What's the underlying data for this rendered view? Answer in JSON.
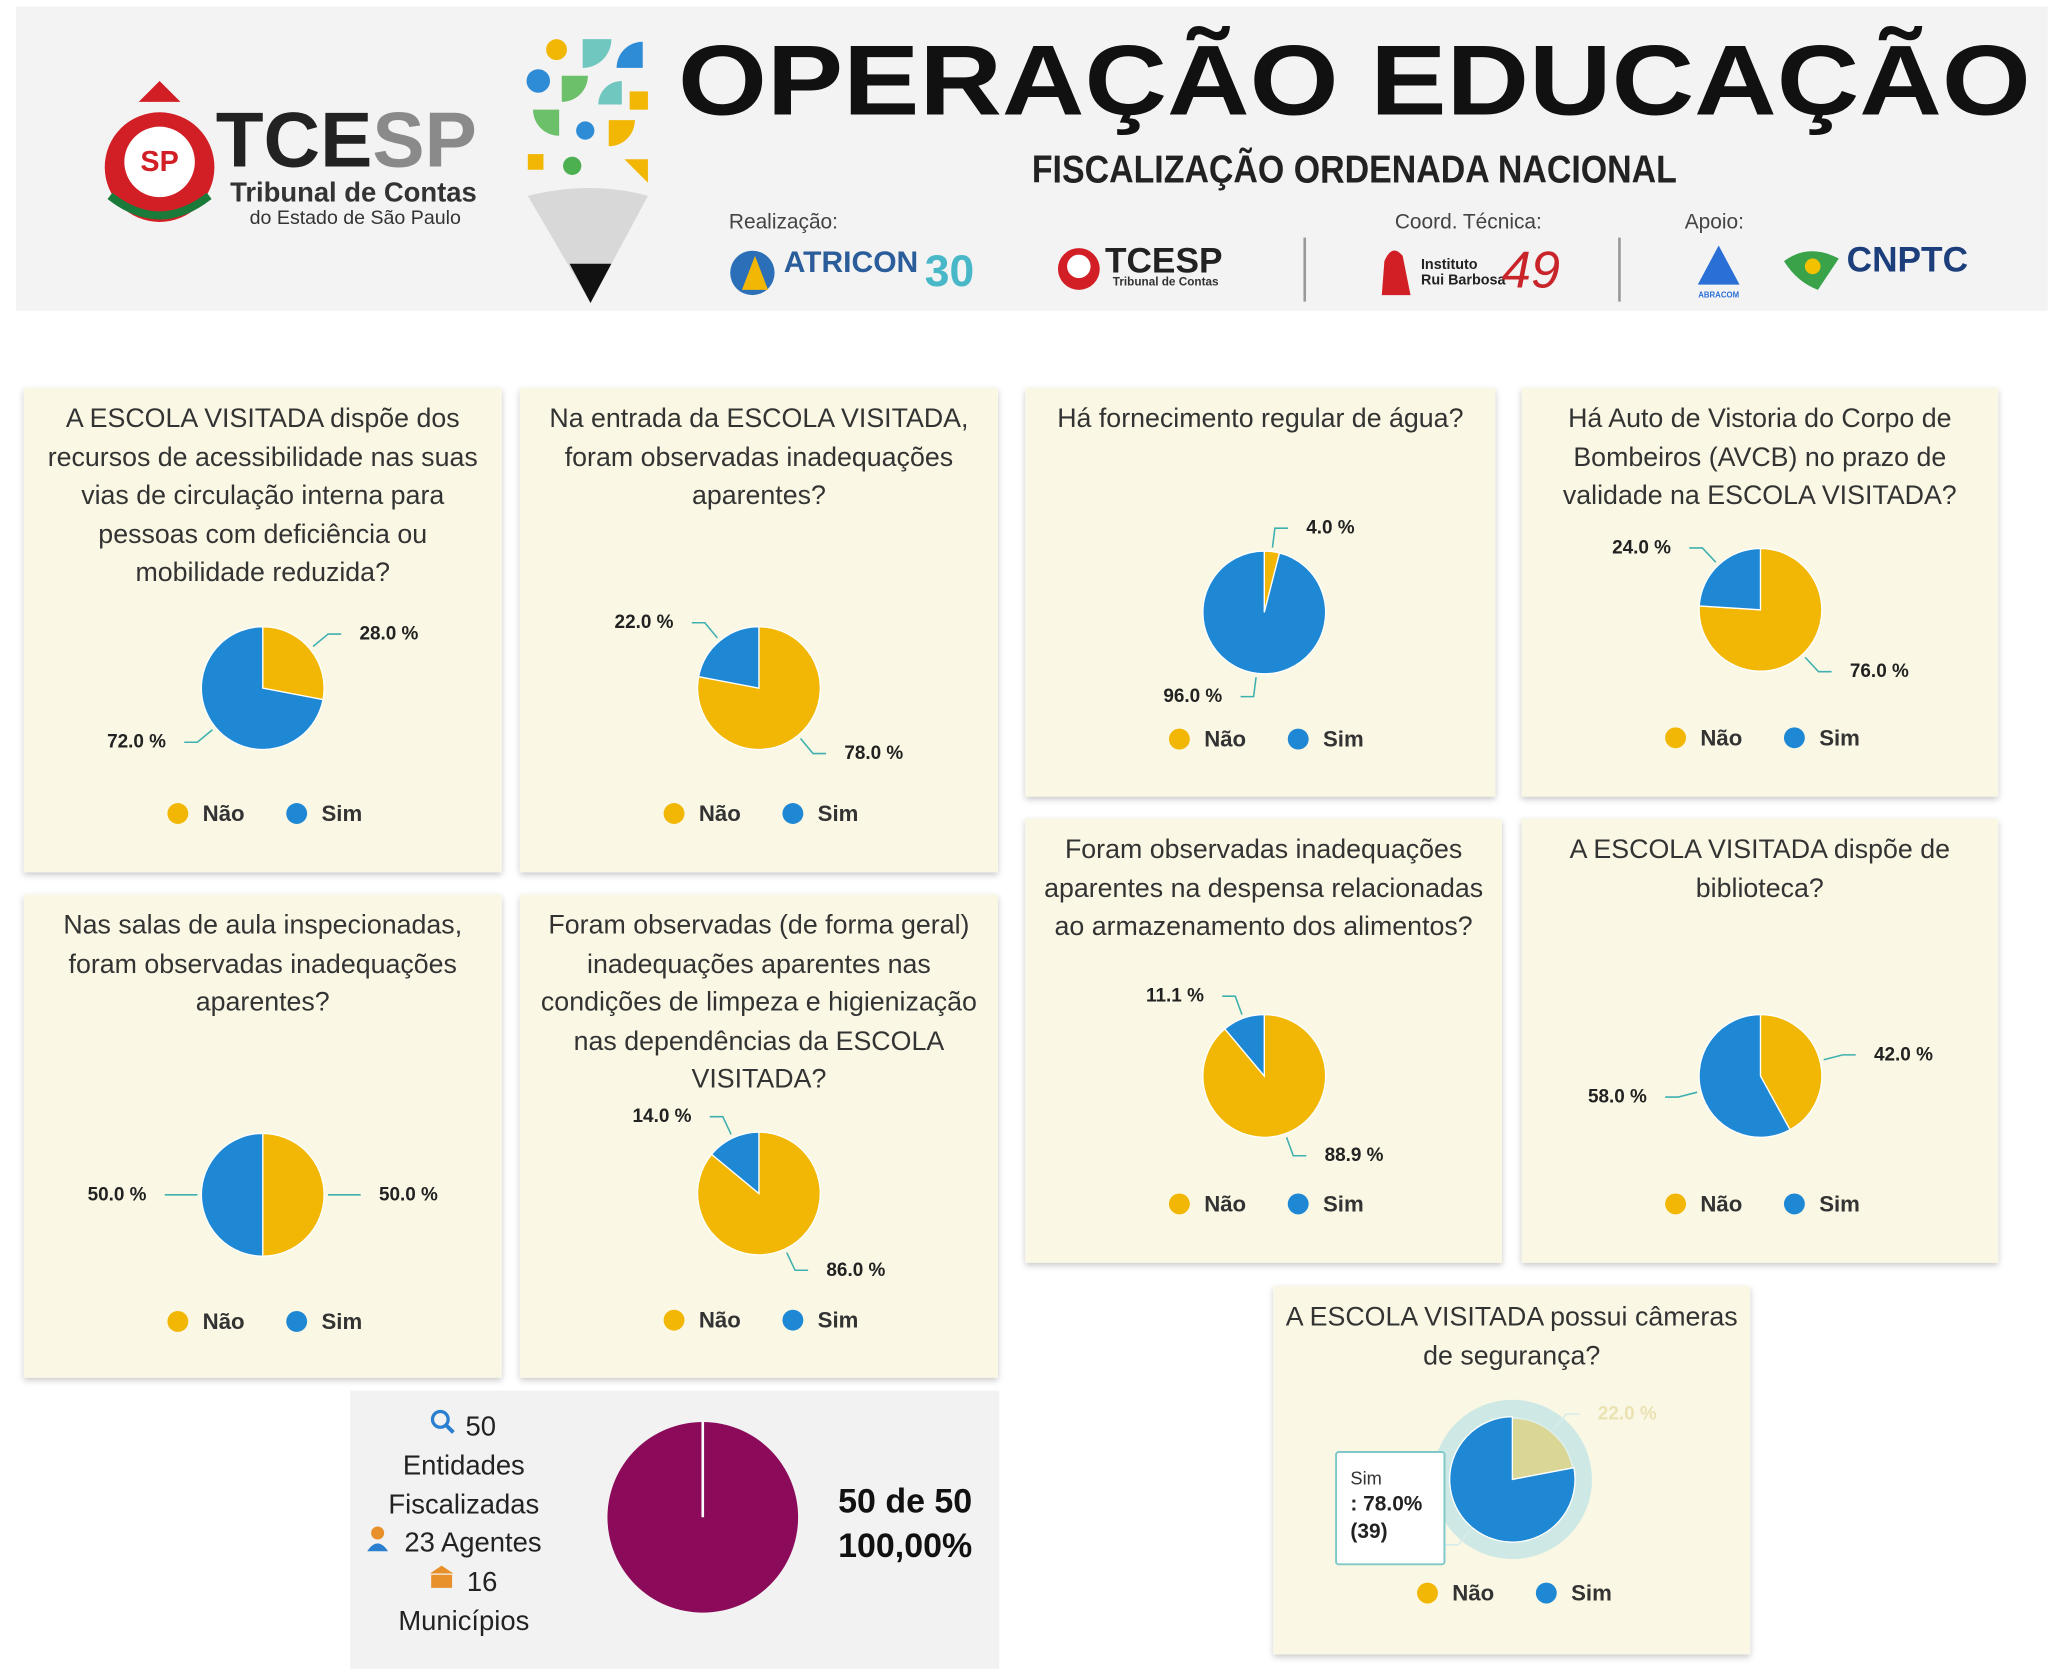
{
  "header": {
    "title": "OPERAÇÃO EDUCAÇÃO",
    "subtitle": "FISCALIZAÇÃO ORDENADA NACIONAL",
    "logo": {
      "emblem": "SP",
      "tce": "TCE",
      "sp": "SP",
      "line1": "Tribunal de Contas",
      "line2": "do Estado de São Paulo"
    },
    "realizacao": "Realização:",
    "atricon": "ATRICON",
    "atricon_years": "30",
    "small_logo": {
      "name": "TCESP",
      "line1": "Tribunal de Contas"
    },
    "coord": "Coord. Técnica:",
    "irb_line1": "Instituto",
    "irb_line2": "Rui Barbosa",
    "irb_years": "49",
    "apoio": "Apoio:",
    "abracom": "ABRACOM",
    "cnptc": "CNPTC"
  },
  "chart_data": [
    {
      "type": "pie",
      "title": "A ESCOLA VISITADA dispõe dos recursos de acessibilidade nas suas vias de circulação interna para pessoas com deficiência ou mobilidade reduzida?",
      "categories": [
        "Não",
        "Sim"
      ],
      "values": [
        28,
        72
      ],
      "value_labels": [
        "28.0 %",
        "72.0 %"
      ],
      "colors": [
        "#f2b705",
        "#1e88d5"
      ]
    },
    {
      "type": "pie",
      "title": "Na entrada da ESCOLA VISITADA, foram observadas inadequações aparentes?",
      "categories": [
        "Não",
        "Sim"
      ],
      "values": [
        78,
        22
      ],
      "value_labels": [
        "78.0 %",
        "22.0 %"
      ],
      "colors": [
        "#f2b705",
        "#1e88d5"
      ]
    },
    {
      "type": "pie",
      "title": "Há fornecimento regular de água?",
      "categories": [
        "Não",
        "Sim"
      ],
      "values": [
        4,
        96
      ],
      "value_labels": [
        "4.0 %",
        "96.0 %"
      ],
      "colors": [
        "#f2b705",
        "#1e88d5"
      ]
    },
    {
      "type": "pie",
      "title": "Há Auto de Vistoria do Corpo de Bombeiros (AVCB) no prazo de validade na ESCOLA VISITADA?",
      "categories": [
        "Não",
        "Sim"
      ],
      "values": [
        76,
        24
      ],
      "value_labels": [
        "76.0 %",
        "24.0 %"
      ],
      "colors": [
        "#f2b705",
        "#1e88d5"
      ]
    },
    {
      "type": "pie",
      "title": "Nas salas de aula inspecionadas, foram observadas inadequações aparentes?",
      "categories": [
        "Não",
        "Sim"
      ],
      "values": [
        50,
        50
      ],
      "value_labels": [
        "50.0 %",
        "50.0 %"
      ],
      "colors": [
        "#f2b705",
        "#1e88d5"
      ]
    },
    {
      "type": "pie",
      "title": "Foram observadas (de forma geral) inadequações aparentes nas condições de limpeza e higienização nas dependências da ESCOLA VISITADA?",
      "categories": [
        "Não",
        "Sim"
      ],
      "values": [
        86,
        14
      ],
      "value_labels": [
        "86.0 %",
        "14.0 %"
      ],
      "colors": [
        "#f2b705",
        "#1e88d5"
      ]
    },
    {
      "type": "pie",
      "title": "Foram observadas inadequações aparentes na despensa relacionadas ao armazenamento dos alimentos?",
      "categories": [
        "Não",
        "Sim"
      ],
      "values": [
        88.9,
        11.1
      ],
      "value_labels": [
        "88.9 %",
        "11.1 %"
      ],
      "colors": [
        "#f2b705",
        "#1e88d5"
      ]
    },
    {
      "type": "pie",
      "title": "A ESCOLA VISITADA dispõe de biblioteca?",
      "categories": [
        "Não",
        "Sim"
      ],
      "values": [
        42,
        58
      ],
      "value_labels": [
        "42.0 %",
        "58.0 %"
      ],
      "colors": [
        "#f2b705",
        "#1e88d5"
      ]
    },
    {
      "type": "pie",
      "title": "A ESCOLA VISITADA possui câmeras de segurança?",
      "categories": [
        "Não",
        "Sim"
      ],
      "values": [
        22,
        78
      ],
      "value_labels": [
        "22.0 %",
        "78.0 %"
      ],
      "colors": [
        "#f2b705",
        "#1e88d5"
      ],
      "tooltip": {
        "name": "Sim",
        "value": ": 78.0%",
        "count": "(39)"
      }
    },
    {
      "type": "pie",
      "values": [
        100
      ],
      "value_labels": [
        "100,00%"
      ],
      "caption": "50 de 50",
      "colors": [
        "#8b0a5a"
      ]
    }
  ],
  "summary": {
    "entities": 50,
    "entities_line1": "Entidades",
    "entities_line2": "Fiscalizadas",
    "agents": "23 Agentes",
    "municipalities": 16,
    "municipalities_label": "Municípios"
  }
}
